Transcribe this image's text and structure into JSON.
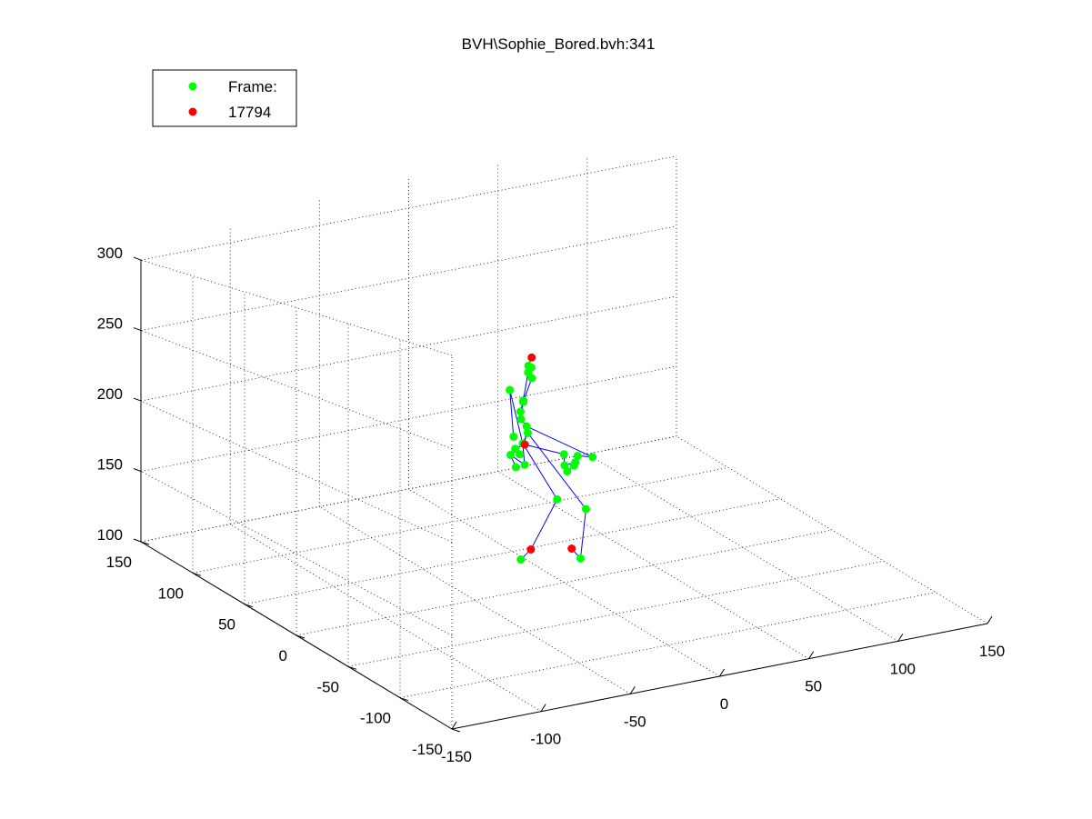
{
  "colors": {
    "background": "#ffffff",
    "axis": "#000000",
    "bone_line": "#0000ff",
    "joint": "#00ff00",
    "end_joint": "#ff0000"
  },
  "chart_data": {
    "type": "scatter",
    "title": "BVH\\Sophie_Bored.bvh:341",
    "xlabel": "",
    "ylabel": "",
    "zlabel": "",
    "projection": "3d-perspective",
    "grid": true,
    "xlim": [
      -150,
      150
    ],
    "ylim": [
      -150,
      150
    ],
    "zlim": [
      100,
      300
    ],
    "x_ticks": [
      "-150",
      "-100",
      "-50",
      "0",
      "50",
      "100",
      "150"
    ],
    "y_ticks": [
      "-150",
      "-100",
      "-50",
      "0",
      "50",
      "100",
      "150"
    ],
    "z_ticks": [
      "100",
      "150",
      "200",
      "250",
      "300"
    ],
    "legend": {
      "placement": "top-left",
      "entries": [
        {
          "label": "Frame:",
          "color": "#00ff00",
          "marker": "circle"
        },
        {
          "label": "17794",
          "color": "#ff0000",
          "marker": "circle"
        }
      ]
    },
    "series": [
      {
        "name": "Frame:",
        "color": "#00ff00",
        "points": [
          [
            -5,
            38,
            157
          ],
          [
            -3,
            33,
            160
          ],
          [
            -8,
            38,
            165
          ],
          [
            0,
            40,
            170
          ],
          [
            4,
            42,
            175
          ],
          [
            1,
            38,
            181
          ],
          [
            -1,
            40,
            185
          ],
          [
            -3,
            37,
            191
          ],
          [
            2,
            43,
            194
          ],
          [
            -2,
            36,
            198
          ],
          [
            -9,
            37,
            205
          ],
          [
            8,
            45,
            207
          ],
          [
            3,
            40,
            213
          ],
          [
            6,
            42,
            215
          ],
          [
            2,
            38,
            218
          ],
          [
            8,
            14,
            172
          ],
          [
            6,
            10,
            167
          ],
          [
            12,
            10,
            168
          ],
          [
            9,
            6,
            168
          ],
          [
            4,
            4,
            166
          ],
          [
            -4,
            42,
            174
          ],
          [
            -10,
            30,
            172
          ],
          [
            -11,
            24,
            171
          ],
          [
            24,
            14,
            168
          ],
          [
            18,
            18,
            168
          ],
          [
            10,
            24,
            140
          ],
          [
            18,
            10,
            138
          ],
          [
            -22,
            4,
            117
          ],
          [
            8,
            -2,
            114
          ]
        ]
      },
      {
        "name": "17794",
        "color": "#ff0000",
        "points": [
          [
            5,
            40,
            222
          ],
          [
            0,
            38,
            170
          ],
          [
            -14,
            8,
            120
          ],
          [
            10,
            10,
            115
          ]
        ]
      }
    ],
    "bones": [
      [
        0,
        2
      ],
      [
        2,
        1
      ],
      [
        1,
        3
      ],
      [
        3,
        4
      ],
      [
        4,
        5
      ],
      [
        5,
        6
      ],
      [
        6,
        7
      ],
      [
        7,
        9
      ],
      [
        9,
        12
      ],
      [
        12,
        13
      ],
      [
        13,
        14
      ],
      [
        14,
        29
      ],
      [
        6,
        8
      ],
      [
        8,
        11
      ],
      [
        11,
        13
      ],
      [
        3,
        10
      ],
      [
        10,
        20
      ],
      [
        5,
        30
      ],
      [
        30,
        15
      ],
      [
        15,
        16
      ],
      [
        16,
        17
      ],
      [
        17,
        18
      ],
      [
        18,
        19
      ],
      [
        30,
        21
      ],
      [
        21,
        22
      ],
      [
        3,
        25
      ],
      [
        25,
        31
      ],
      [
        31,
        27
      ],
      [
        4,
        26
      ],
      [
        26,
        28
      ],
      [
        28,
        32
      ],
      [
        5,
        23
      ],
      [
        23,
        24
      ]
    ]
  }
}
